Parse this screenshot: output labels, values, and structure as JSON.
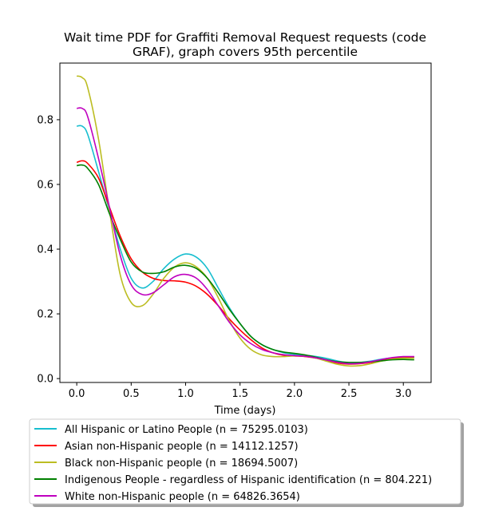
{
  "chart_data": {
    "type": "line",
    "title_lines": [
      "Wait time PDF for Graffiti Removal Request  requests (code",
      "GRAF), graph covers 95th percentile"
    ],
    "xlabel": "Time (days)",
    "ylabel": "",
    "xlim": [
      -0.155,
      3.255
    ],
    "ylim": [
      -0.012,
      0.975
    ],
    "x_ticks": [
      0.0,
      0.5,
      1.0,
      1.5,
      2.0,
      2.5,
      3.0
    ],
    "x_tick_labels": [
      "0.0",
      "0.5",
      "1.0",
      "1.5",
      "2.0",
      "2.5",
      "3.0"
    ],
    "y_ticks": [
      0.0,
      0.2,
      0.4,
      0.6,
      0.8
    ],
    "y_tick_labels": [
      "0.0",
      "0.2",
      "0.4",
      "0.6",
      "0.8"
    ],
    "grid": false,
    "legend_position": "below chart",
    "x": [
      0.0,
      0.05,
      0.1,
      0.2,
      0.3,
      0.4,
      0.5,
      0.6,
      0.7,
      0.8,
      0.9,
      1.0,
      1.1,
      1.2,
      1.3,
      1.4,
      1.5,
      1.6,
      1.7,
      1.8,
      1.9,
      2.0,
      2.1,
      2.2,
      2.3,
      2.4,
      2.5,
      2.6,
      2.7,
      2.8,
      2.9,
      3.0,
      3.1
    ],
    "series": [
      {
        "name": "All Hispanic or Latino People (n = 75295.0103)",
        "color": "#17becf",
        "values": [
          0.78,
          0.78,
          0.755,
          0.64,
          0.52,
          0.4,
          0.31,
          0.28,
          0.3,
          0.34,
          0.37,
          0.385,
          0.375,
          0.34,
          0.28,
          0.22,
          0.17,
          0.13,
          0.105,
          0.09,
          0.08,
          0.075,
          0.072,
          0.068,
          0.062,
          0.054,
          0.049,
          0.05,
          0.054,
          0.06,
          0.064,
          0.066,
          0.065
        ]
      },
      {
        "name": "Asian non-Hispanic people (n = 14112.1257)",
        "color": "#ff0000",
        "values": [
          0.668,
          0.673,
          0.665,
          0.62,
          0.53,
          0.44,
          0.37,
          0.33,
          0.31,
          0.303,
          0.302,
          0.298,
          0.285,
          0.26,
          0.225,
          0.185,
          0.15,
          0.12,
          0.095,
          0.08,
          0.072,
          0.07,
          0.068,
          0.063,
          0.055,
          0.048,
          0.045,
          0.046,
          0.05,
          0.056,
          0.062,
          0.066,
          0.067
        ]
      },
      {
        "name": "Black non-Hispanic people (n = 18694.5007)",
        "color": "#bcbd22",
        "values": [
          0.935,
          0.93,
          0.9,
          0.74,
          0.52,
          0.32,
          0.235,
          0.225,
          0.26,
          0.31,
          0.345,
          0.358,
          0.345,
          0.31,
          0.25,
          0.18,
          0.125,
          0.09,
          0.073,
          0.068,
          0.068,
          0.07,
          0.069,
          0.063,
          0.053,
          0.044,
          0.039,
          0.04,
          0.046,
          0.054,
          0.06,
          0.063,
          0.063
        ]
      },
      {
        "name": "Indigenous People - regardless of Hispanic identification (n = 804.221)",
        "color": "#008000",
        "values": [
          0.658,
          0.66,
          0.65,
          0.6,
          0.51,
          0.43,
          0.36,
          0.33,
          0.325,
          0.33,
          0.345,
          0.35,
          0.34,
          0.31,
          0.265,
          0.215,
          0.17,
          0.13,
          0.105,
          0.09,
          0.082,
          0.078,
          0.073,
          0.066,
          0.058,
          0.052,
          0.05,
          0.05,
          0.052,
          0.055,
          0.058,
          0.059,
          0.058
        ]
      },
      {
        "name": "White non-Hispanic people (n = 64826.3654)",
        "color": "#bf00bf",
        "values": [
          0.835,
          0.835,
          0.81,
          0.68,
          0.53,
          0.38,
          0.29,
          0.26,
          0.265,
          0.29,
          0.315,
          0.322,
          0.31,
          0.275,
          0.225,
          0.175,
          0.135,
          0.108,
          0.09,
          0.08,
          0.074,
          0.071,
          0.069,
          0.064,
          0.057,
          0.05,
          0.046,
          0.047,
          0.052,
          0.059,
          0.065,
          0.068,
          0.068
        ]
      }
    ]
  }
}
